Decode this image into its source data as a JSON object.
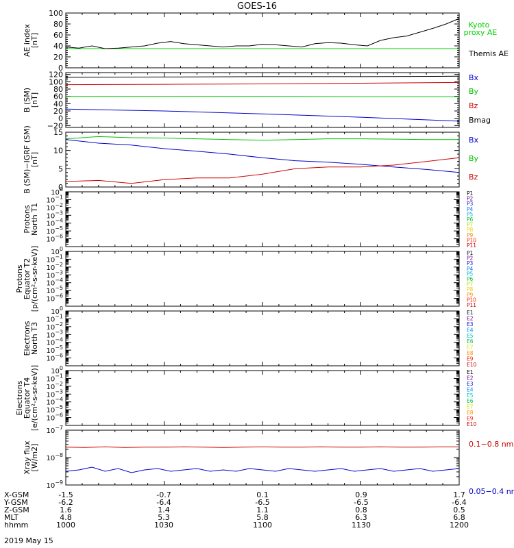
{
  "title": "GOES-16",
  "footer": {
    "rows": [
      {
        "label": "X-GSM",
        "values": [
          "-1.5",
          "-0.7",
          "0.1",
          "0.9",
          "1.7"
        ]
      },
      {
        "label": "Y-GSM",
        "values": [
          "-6.2",
          "-6.4",
          "-6.5",
          "-6.5",
          "-6.4"
        ]
      },
      {
        "label": "Z-GSM",
        "values": [
          "1.6",
          "1.4",
          "1.1",
          "0.8",
          "0.5"
        ]
      },
      {
        "label": "MLT",
        "values": [
          "4.8",
          "5.3",
          "5.8",
          "6.3",
          "6.8"
        ]
      },
      {
        "label": "hhmm",
        "values": [
          "1000",
          "1030",
          "1100",
          "1130",
          "1200"
        ]
      }
    ],
    "date": "2019 May 15"
  },
  "chart_data": [
    {
      "type": "line",
      "id": "ae",
      "ylabel": [
        "AE index",
        "[nT]"
      ],
      "ylim": [
        0,
        100
      ],
      "yticks": [
        {
          "v": 0,
          "t": "0"
        },
        {
          "v": 20,
          "t": "20"
        },
        {
          "v": 40,
          "t": "40"
        },
        {
          "v": 60,
          "t": "60"
        },
        {
          "v": 80,
          "t": "80"
        },
        {
          "v": 100,
          "t": "100"
        }
      ],
      "minor": 5,
      "legend": [
        {
          "text": "Kyoto",
          "color": "#00d000"
        },
        {
          "text": "proxy AE",
          "color": "#00d000"
        },
        {
          "text": "Themis AE",
          "color": "#000000"
        }
      ],
      "series": [
        {
          "name": "Kyoto proxy AE",
          "color": "#00d000",
          "t": [
            0,
            120
          ],
          "y": [
            35,
            35
          ]
        },
        {
          "name": "Themis AE",
          "color": "#000000",
          "t": [
            0,
            4,
            8,
            12,
            16,
            20,
            24,
            28,
            32,
            36,
            40,
            44,
            48,
            52,
            56,
            60,
            64,
            68,
            72,
            76,
            80,
            84,
            88,
            92,
            96,
            100,
            104,
            108,
            112,
            116,
            120
          ],
          "y": [
            38,
            36,
            40,
            35,
            36,
            38,
            40,
            45,
            48,
            44,
            42,
            40,
            38,
            40,
            40,
            43,
            42,
            40,
            38,
            44,
            46,
            45,
            42,
            40,
            50,
            55,
            58,
            65,
            72,
            80,
            90
          ]
        }
      ]
    },
    {
      "type": "line",
      "id": "bsm",
      "ylabel": [
        "B (SM)",
        "[nT]"
      ],
      "ylim": [
        -25,
        125
      ],
      "yticks": [
        {
          "v": -20,
          "t": "−20"
        },
        {
          "v": 0,
          "t": "0"
        },
        {
          "v": 20,
          "t": "20"
        },
        {
          "v": 40,
          "t": "40"
        },
        {
          "v": 60,
          "t": "60"
        },
        {
          "v": 80,
          "t": "80"
        },
        {
          "v": 100,
          "t": "100"
        },
        {
          "v": 120,
          "t": "120"
        }
      ],
      "minor": 4,
      "legend": [
        {
          "text": "Bx",
          "color": "#0000cc"
        },
        {
          "text": "By",
          "color": "#00c000"
        },
        {
          "text": "Bz",
          "color": "#cc0000"
        },
        {
          "text": "Bmag",
          "color": "#000000"
        }
      ],
      "series": [
        {
          "name": "Bmag",
          "color": "#000000",
          "t": [
            0,
            30,
            60,
            90,
            120
          ],
          "y": [
            112,
            113,
            114,
            114,
            115
          ]
        },
        {
          "name": "Bz",
          "color": "#cc0000",
          "t": [
            0,
            30,
            60,
            90,
            120
          ],
          "y": [
            92,
            93,
            94,
            96,
            98
          ]
        },
        {
          "name": "By",
          "color": "#00c000",
          "t": [
            0,
            30,
            60,
            90,
            120
          ],
          "y": [
            60,
            60,
            60,
            59,
            59
          ]
        },
        {
          "name": "Bx",
          "color": "#0000cc",
          "t": [
            0,
            30,
            60,
            90,
            120
          ],
          "y": [
            25,
            20,
            12,
            3,
            -8
          ]
        }
      ]
    },
    {
      "type": "line",
      "id": "bigrf",
      "ylabel": [
        "B (SM)−IGRF (SM)",
        "[nT]"
      ],
      "ylim": [
        0,
        15
      ],
      "yticks": [
        {
          "v": 0,
          "t": "0"
        },
        {
          "v": 5,
          "t": "5"
        },
        {
          "v": 10,
          "t": "10"
        },
        {
          "v": 15,
          "t": "15"
        }
      ],
      "minor": 5,
      "legend": [
        {
          "text": "Bx",
          "color": "#0000cc"
        },
        {
          "text": "By",
          "color": "#00c000"
        },
        {
          "text": "Bz",
          "color": "#cc0000"
        }
      ],
      "series": [
        {
          "name": "By",
          "color": "#00c000",
          "t": [
            0,
            10,
            20,
            30,
            40,
            50,
            60,
            70,
            80,
            90,
            100,
            110,
            120
          ],
          "y": [
            13.2,
            13.8,
            13.5,
            13.4,
            13.2,
            13.0,
            12.8,
            13.0,
            13.2,
            13.2,
            13.1,
            13.0,
            13.0
          ]
        },
        {
          "name": "Bx",
          "color": "#0000cc",
          "t": [
            0,
            10,
            20,
            30,
            40,
            50,
            60,
            70,
            80,
            90,
            100,
            110,
            120
          ],
          "y": [
            13.0,
            12.0,
            11.5,
            10.5,
            9.8,
            9.0,
            8.0,
            7.2,
            6.8,
            6.2,
            5.5,
            4.8,
            4.0
          ]
        },
        {
          "name": "Bz",
          "color": "#cc0000",
          "t": [
            0,
            10,
            20,
            30,
            40,
            50,
            60,
            70,
            80,
            90,
            100,
            110,
            120
          ],
          "y": [
            1.5,
            1.8,
            1.0,
            2.0,
            2.5,
            2.5,
            3.5,
            5.0,
            5.5,
            5.5,
            6.0,
            7.0,
            8.0
          ]
        }
      ]
    },
    {
      "type": "log-empty",
      "id": "protons-t1",
      "ylabel": [
        "Protons",
        "North T1"
      ],
      "exponents": [
        0,
        -1,
        -2,
        -3,
        -4,
        -5,
        -6
      ],
      "channels": [
        {
          "t": "P1",
          "c": "#000000"
        },
        {
          "t": "P2",
          "c": "#6a0080"
        },
        {
          "t": "P3",
          "c": "#1010d0"
        },
        {
          "t": "P4",
          "c": "#0070ff"
        },
        {
          "t": "P5",
          "c": "#00b0d0"
        },
        {
          "t": "P6",
          "c": "#00c040"
        },
        {
          "t": "P7",
          "c": "#b8e000"
        },
        {
          "t": "P8",
          "c": "#f0d000"
        },
        {
          "t": "P9",
          "c": "#ff8000"
        },
        {
          "t": "P10",
          "c": "#ff2000"
        },
        {
          "t": "P11",
          "c": "#c00000"
        }
      ]
    },
    {
      "type": "log-empty",
      "id": "protons-t2",
      "ylabel": [
        "Protons",
        "Equator T2",
        "[p/(cm²-s-sr-keV)]"
      ],
      "exponents": [
        0,
        -1,
        -2,
        -3,
        -4,
        -5,
        -6
      ],
      "channels": [
        {
          "t": "P1",
          "c": "#000000"
        },
        {
          "t": "P2",
          "c": "#6a0080"
        },
        {
          "t": "P3",
          "c": "#1010d0"
        },
        {
          "t": "P4",
          "c": "#0070ff"
        },
        {
          "t": "P5",
          "c": "#00b0d0"
        },
        {
          "t": "P6",
          "c": "#00c040"
        },
        {
          "t": "P7",
          "c": "#b8e000"
        },
        {
          "t": "P8",
          "c": "#f0d000"
        },
        {
          "t": "P9",
          "c": "#ff8000"
        },
        {
          "t": "P10",
          "c": "#ff2000"
        },
        {
          "t": "P11",
          "c": "#c00000"
        }
      ]
    },
    {
      "type": "log-empty",
      "id": "electrons-t3",
      "ylabel": [
        "Electrons",
        "North T3"
      ],
      "exponents": [
        0,
        -1,
        -2,
        -3,
        -4,
        -5,
        -6
      ],
      "channels": [
        {
          "t": "E1",
          "c": "#000000"
        },
        {
          "t": "E2",
          "c": "#6a0080"
        },
        {
          "t": "E3",
          "c": "#1010d0"
        },
        {
          "t": "E4",
          "c": "#0090ff"
        },
        {
          "t": "E5",
          "c": "#00c0c0"
        },
        {
          "t": "E6",
          "c": "#00c040"
        },
        {
          "t": "E7",
          "c": "#e0e000"
        },
        {
          "t": "E8",
          "c": "#ff9000"
        },
        {
          "t": "E9",
          "c": "#ff2000"
        },
        {
          "t": "E10",
          "c": "#c00000"
        }
      ]
    },
    {
      "type": "log-empty",
      "id": "electrons-t4",
      "ylabel": [
        "Electrons",
        "Equator T4",
        "[e/(cm²-s-sr-keV)]"
      ],
      "exponents": [
        0,
        -1,
        -2,
        -3,
        -4,
        -5,
        -6
      ],
      "channels": [
        {
          "t": "E1",
          "c": "#000000"
        },
        {
          "t": "E2",
          "c": "#6a0080"
        },
        {
          "t": "E3",
          "c": "#1010d0"
        },
        {
          "t": "E4",
          "c": "#0090ff"
        },
        {
          "t": "E5",
          "c": "#00c0c0"
        },
        {
          "t": "E6",
          "c": "#00c040"
        },
        {
          "t": "E7",
          "c": "#e0e000"
        },
        {
          "t": "E8",
          "c": "#ff9000"
        },
        {
          "t": "E9",
          "c": "#ff2000"
        },
        {
          "t": "E10",
          "c": "#c00000"
        }
      ]
    },
    {
      "type": "line-log",
      "id": "xray",
      "ylabel": [
        "Xray flux",
        "[W/m2]"
      ],
      "exponents": [
        -7,
        -8,
        -9
      ],
      "legend": [
        {
          "text": "0.1−0.8 nm",
          "color": "#cc0000"
        },
        {
          "text": "0.05−0.4 nm",
          "color": "#0000cc"
        }
      ],
      "series": [
        {
          "name": "0.1−0.8 nm",
          "color": "#cc0000",
          "t": [
            0,
            6,
            12,
            18,
            24,
            30,
            36,
            42,
            48,
            54,
            60,
            66,
            72,
            78,
            84,
            90,
            96,
            102,
            108,
            114,
            120
          ],
          "y": [
            -7.62,
            -7.63,
            -7.61,
            -7.63,
            -7.62,
            -7.62,
            -7.61,
            -7.62,
            -7.63,
            -7.62,
            -7.61,
            -7.62,
            -7.62,
            -7.61,
            -7.62,
            -7.62,
            -7.61,
            -7.62,
            -7.62,
            -7.61,
            -7.61
          ]
        },
        {
          "name": "0.05−0.4 nm",
          "color": "#0000cc",
          "t": [
            0,
            4,
            8,
            12,
            16,
            20,
            24,
            28,
            32,
            36,
            40,
            44,
            48,
            52,
            56,
            60,
            64,
            68,
            72,
            76,
            80,
            84,
            88,
            92,
            96,
            100,
            104,
            108,
            112,
            116,
            120
          ],
          "y": [
            -8.5,
            -8.45,
            -8.35,
            -8.5,
            -8.4,
            -8.55,
            -8.45,
            -8.4,
            -8.5,
            -8.45,
            -8.4,
            -8.5,
            -8.45,
            -8.5,
            -8.4,
            -8.45,
            -8.5,
            -8.4,
            -8.45,
            -8.5,
            -8.45,
            -8.4,
            -8.5,
            -8.45,
            -8.4,
            -8.5,
            -8.45,
            -8.4,
            -8.5,
            -8.45,
            -8.4
          ]
        }
      ]
    }
  ]
}
